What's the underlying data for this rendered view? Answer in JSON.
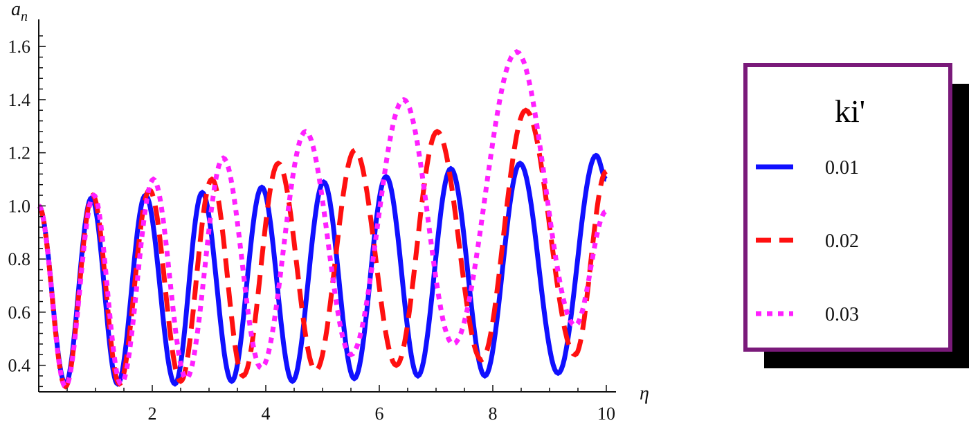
{
  "chart_data": {
    "type": "line",
    "xlabel": "η",
    "ylabel": "a",
    "ylabel_sub": "n",
    "xlim": [
      0,
      10
    ],
    "ylim": [
      0.3,
      1.65
    ],
    "x_ticks": [
      2,
      4,
      6,
      8,
      10
    ],
    "x_tick_labels": [
      "2",
      "4",
      "6",
      "8",
      "10"
    ],
    "y_ticks": [
      0.4,
      0.6,
      0.8,
      1.0,
      1.2,
      1.4,
      1.6
    ],
    "y_tick_labels": [
      "0.4",
      "0.6",
      "0.8",
      "1.0",
      "1.2",
      "1.4",
      "1.6"
    ],
    "legend": {
      "title": "ki'",
      "placement": "right",
      "border_color": "#7a1a7a",
      "shadow_color": "#000000"
    },
    "series": [
      {
        "name": "0.01",
        "color": "#1010ff",
        "style": "solid",
        "x": [
          0,
          0.47,
          0.93,
          1.39,
          1.88,
          2.4,
          2.88,
          3.4,
          3.93,
          4.47,
          5.02,
          5.56,
          6.12,
          6.68,
          7.26,
          7.86,
          8.48,
          9.15,
          9.82,
          10
        ],
        "y": [
          1.0,
          0.33,
          1.03,
          0.33,
          1.04,
          0.33,
          1.05,
          0.34,
          1.07,
          0.34,
          1.09,
          0.35,
          1.11,
          0.36,
          1.14,
          0.36,
          1.16,
          0.37,
          1.19,
          1.1
        ]
      },
      {
        "name": "0.02",
        "color": "#ff1010",
        "style": "dashed",
        "x": [
          0,
          0.47,
          0.95,
          1.42,
          1.95,
          2.5,
          3.05,
          3.6,
          4.22,
          4.88,
          5.57,
          6.3,
          7.02,
          7.8,
          8.58,
          9.45,
          10
        ],
        "y": [
          1.0,
          0.32,
          1.04,
          0.33,
          1.06,
          0.34,
          1.1,
          0.36,
          1.16,
          0.38,
          1.21,
          0.4,
          1.28,
          0.42,
          1.36,
          0.44,
          1.13
        ]
      },
      {
        "name": "0.03",
        "color": "#ff20ff",
        "style": "dotted",
        "x": [
          0,
          0.47,
          0.97,
          1.45,
          2.02,
          2.6,
          3.25,
          3.92,
          4.7,
          5.5,
          6.43,
          7.3,
          8.42,
          9.45,
          10
        ],
        "y": [
          1.0,
          0.32,
          1.04,
          0.33,
          1.1,
          0.35,
          1.18,
          0.39,
          1.28,
          0.44,
          1.4,
          0.48,
          1.58,
          0.55,
          0.98
        ]
      }
    ]
  }
}
